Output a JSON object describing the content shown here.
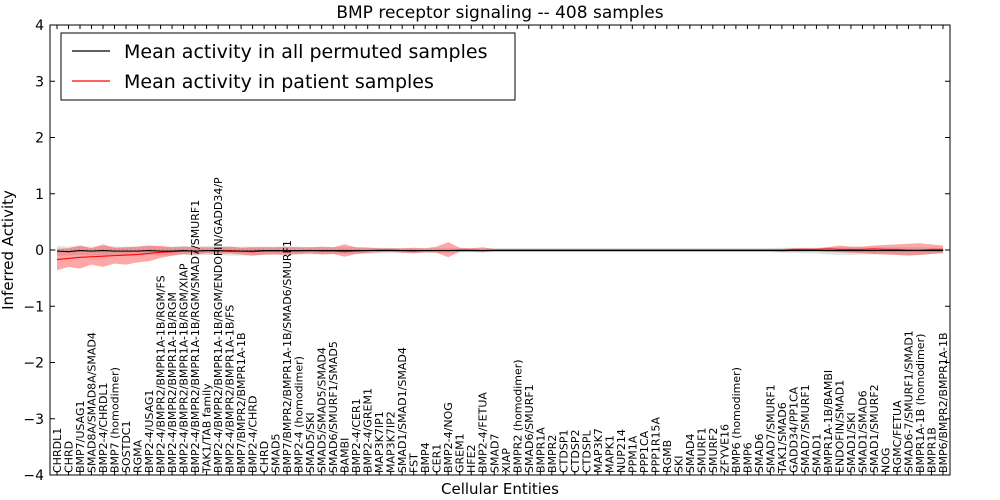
{
  "chart_data": {
    "type": "line",
    "title": "BMP receptor signaling -- 408 samples",
    "xlabel": "Cellular Entities",
    "ylabel": "Inferred Activity",
    "ylim": [
      -4,
      4
    ],
    "yticks": [
      -4,
      -3,
      -2,
      -1,
      0,
      1,
      2,
      3,
      4
    ],
    "legend": {
      "position": "top-left",
      "entries": [
        {
          "label": "Mean activity in all permuted samples",
          "color": "#000000"
        },
        {
          "label": "Mean activity in patient samples",
          "color": "#ff0000"
        }
      ]
    },
    "categories": [
      "CHRDL1",
      "CHRD",
      "BMP7/USAG1",
      "SMAD8A/SMAD8A/SMAD4",
      "BMP2-4/CHRDL1",
      "BMP7 (homodimer)",
      "SOSTDC1",
      "RGMA",
      "BMP2-4/USAG1",
      "BMP2-4/BMPR2/BMPR1A-1B/RGM/FS",
      "BMP2-4/BMPR2/BMPR1A-1B/RGM",
      "BMP2-4/BMPR2/BMPR1A-1B/RGM/XIAP",
      "BMP2-4/BMPR2/BMPR1A-1B/RGM/SMAD7/SMURF1",
      "TAK1/TAB family",
      "BMP2-4/BMPR2/BMPR1A-1B/RGM/ENDOFIN/GADD34/P",
      "BMP2-4/BMPR2/BMPR1A-1B/FS",
      "BMP7/BMPR2/BMPR1A-1B",
      "BMP2-4/CHRD",
      "CHRD",
      "SMAD5",
      "BMP7/BMPR2/BMPR1A-1B/SMAD6/SMURF1",
      "BMP2-4 (homodimer)",
      "SMAD5/SKI",
      "SMAD5/SMAD5/SMAD4",
      "SMAD6/SMURF1/SMAD5",
      "BAMBI",
      "BMP2-4/CER1",
      "BMP2-4/GREM1",
      "MAP3K7IP1",
      "MAP3K7IP2",
      "SMAD1/SMAD1/SMAD4",
      "FST",
      "BMP4",
      "CER1",
      "BMP2-4/NOG",
      "GREM1",
      "HFE2",
      "BMP2-4/FETUA",
      "SMAD7",
      "XIAP",
      "BMPR2 (homodimer)",
      "SMAD6/SMURF1",
      "BMPR1A",
      "BMPR2",
      "CTDSP1",
      "CTDSP2",
      "CTDSPL",
      "MAP3K7",
      "MAPK1",
      "NUP214",
      "PPM1A",
      "PPP1CA",
      "PPP1R15A",
      "RGMB",
      "SKI",
      "SMAD4",
      "SMURF1",
      "SMURF2",
      "ZFYVE16",
      "BMP6 (homodimer)",
      "BMP6",
      "SMAD6",
      "SMAD7/SMURF1",
      "TAK1/SMAD6",
      "GADD34/PP1CA",
      "SMAD7/SMURF1",
      "SMAD1",
      "BMPR1A-1B/BAMBI",
      "ENDOFIN/SMAD1",
      "SMAD1/SKI",
      "SMAD1/SMAD6",
      "SMAD1/SMURF2",
      "NOG",
      "RGMC/FETUA",
      "SMAD6-7/SMURF1/SMAD1",
      "BMPR1A-1B (homodimer)",
      "BMPR1B",
      "BMP6/BMPR2/BMPR1A-1B"
    ],
    "series": [
      {
        "name": "Mean activity in all permuted samples",
        "color": "#000000",
        "values": [
          -0.02,
          -0.03,
          -0.01,
          -0.02,
          -0.01,
          -0.02,
          -0.02,
          -0.02,
          -0.01,
          -0.02,
          -0.02,
          -0.01,
          -0.02,
          -0.01,
          -0.01,
          -0.02,
          -0.02,
          -0.02,
          -0.01,
          -0.01,
          -0.01,
          -0.01,
          -0.01,
          -0.01,
          -0.01,
          -0.01,
          -0.01,
          -0.01,
          -0.01,
          -0.01,
          -0.01,
          -0.01,
          -0.01,
          -0.01,
          -0.01,
          -0.01,
          -0.01,
          -0.01,
          -0.01,
          -0.01,
          -0.01,
          -0.01,
          -0.01,
          -0.01,
          -0.01,
          -0.01,
          -0.01,
          -0.01,
          -0.01,
          -0.01,
          -0.01,
          -0.01,
          -0.01,
          -0.01,
          -0.01,
          -0.01,
          -0.01,
          -0.01,
          -0.01,
          -0.01,
          -0.01,
          -0.01,
          -0.01,
          -0.01,
          -0.01,
          -0.01,
          -0.01,
          -0.01,
          -0.01,
          -0.01,
          -0.01,
          -0.01,
          -0.01,
          -0.01,
          -0.01,
          -0.01,
          -0.01,
          -0.01
        ],
        "band_low": [
          -0.1,
          -0.1,
          -0.09,
          -0.1,
          -0.09,
          -0.1,
          -0.1,
          -0.1,
          -0.09,
          -0.1,
          -0.1,
          -0.09,
          -0.1,
          -0.09,
          -0.09,
          -0.1,
          -0.1,
          -0.1,
          -0.09,
          -0.08,
          -0.08,
          -0.08,
          -0.08,
          -0.07,
          -0.07,
          -0.07,
          -0.07,
          -0.07,
          -0.06,
          -0.06,
          -0.05,
          -0.05,
          -0.05,
          -0.05,
          -0.05,
          -0.04,
          -0.04,
          -0.04,
          -0.04,
          -0.04,
          -0.04,
          -0.04,
          -0.04,
          -0.04,
          -0.04,
          -0.04,
          -0.04,
          -0.04,
          -0.04,
          -0.04,
          -0.04,
          -0.04,
          -0.04,
          -0.04,
          -0.04,
          -0.04,
          -0.04,
          -0.04,
          -0.04,
          -0.04,
          -0.04,
          -0.04,
          -0.04,
          -0.05,
          -0.05,
          -0.06,
          -0.06,
          -0.08,
          -0.09,
          -0.09,
          -0.08,
          -0.08,
          -0.07,
          -0.08,
          -0.09,
          -0.09,
          -0.07,
          -0.07
        ],
        "band_high": [
          0.07,
          0.06,
          0.07,
          0.06,
          0.07,
          0.06,
          0.06,
          0.06,
          0.07,
          0.06,
          0.06,
          0.07,
          0.06,
          0.07,
          0.07,
          0.06,
          0.06,
          0.06,
          0.06,
          0.06,
          0.06,
          0.06,
          0.05,
          0.05,
          0.05,
          0.05,
          0.05,
          0.05,
          0.04,
          0.04,
          0.03,
          0.03,
          0.03,
          0.03,
          0.03,
          0.03,
          0.03,
          0.03,
          0.03,
          0.03,
          0.03,
          0.03,
          0.03,
          0.03,
          0.03,
          0.03,
          0.03,
          0.03,
          0.03,
          0.03,
          0.03,
          0.03,
          0.03,
          0.03,
          0.03,
          0.03,
          0.03,
          0.03,
          0.03,
          0.03,
          0.03,
          0.03,
          0.03,
          0.04,
          0.04,
          0.04,
          0.04,
          0.05,
          0.05,
          0.05,
          0.05,
          0.05,
          0.05,
          0.05,
          0.05,
          0.05,
          0.04,
          0.04
        ]
      },
      {
        "name": "Mean activity in patient samples",
        "color": "#ff0000",
        "values": [
          -0.17,
          -0.15,
          -0.13,
          -0.12,
          -0.11,
          -0.1,
          -0.09,
          -0.08,
          -0.06,
          -0.04,
          -0.03,
          -0.02,
          -0.02,
          -0.01,
          -0.02,
          -0.01,
          -0.02,
          -0.03,
          -0.02,
          -0.02,
          -0.02,
          -0.02,
          -0.01,
          -0.02,
          -0.02,
          -0.03,
          -0.02,
          -0.01,
          0.0,
          0.0,
          -0.01,
          -0.02,
          -0.01,
          -0.01,
          -0.01,
          0.0,
          0.0,
          -0.01,
          0.0,
          0.0,
          0.0,
          0.0,
          0.0,
          0.0,
          0.0,
          0.0,
          0.0,
          0.0,
          0.0,
          0.0,
          0.0,
          0.0,
          0.0,
          0.0,
          0.0,
          0.0,
          0.0,
          0.0,
          0.0,
          0.0,
          0.0,
          0.0,
          0.0,
          0.0,
          0.01,
          0.01,
          0.01,
          0.02,
          0.01,
          0.01,
          0.01,
          0.02,
          0.01,
          0.01,
          0.0,
          0.0,
          0.01,
          0.01
        ],
        "band_low": [
          -0.36,
          -0.3,
          -0.33,
          -0.26,
          -0.3,
          -0.24,
          -0.26,
          -0.22,
          -0.2,
          -0.14,
          -0.1,
          -0.07,
          -0.08,
          -0.06,
          -0.07,
          -0.06,
          -0.08,
          -0.1,
          -0.08,
          -0.08,
          -0.09,
          -0.07,
          -0.06,
          -0.08,
          -0.07,
          -0.12,
          -0.07,
          -0.05,
          -0.04,
          -0.03,
          -0.05,
          -0.06,
          -0.04,
          -0.05,
          -0.13,
          -0.03,
          -0.03,
          -0.04,
          -0.02,
          -0.02,
          -0.02,
          -0.02,
          -0.02,
          -0.02,
          -0.02,
          -0.02,
          -0.02,
          -0.02,
          -0.02,
          -0.02,
          -0.02,
          -0.02,
          -0.02,
          -0.02,
          -0.02,
          -0.02,
          -0.02,
          -0.02,
          -0.02,
          -0.02,
          -0.02,
          -0.02,
          -0.02,
          -0.03,
          -0.02,
          -0.02,
          -0.02,
          -0.03,
          -0.04,
          -0.05,
          -0.06,
          -0.07,
          -0.08,
          -0.09,
          -0.1,
          -0.09,
          -0.07,
          -0.05
        ],
        "band_high": [
          0.02,
          0.03,
          0.08,
          0.03,
          0.1,
          0.04,
          0.05,
          0.06,
          0.08,
          0.07,
          0.05,
          0.06,
          0.05,
          0.05,
          0.05,
          0.06,
          0.04,
          0.05,
          0.05,
          0.05,
          0.06,
          0.05,
          0.05,
          0.06,
          0.05,
          0.1,
          0.05,
          0.04,
          0.03,
          0.03,
          0.03,
          0.04,
          0.03,
          0.06,
          0.14,
          0.04,
          0.03,
          0.05,
          0.02,
          0.02,
          0.02,
          0.02,
          0.02,
          0.02,
          0.02,
          0.02,
          0.02,
          0.02,
          0.02,
          0.02,
          0.02,
          0.02,
          0.02,
          0.02,
          0.02,
          0.02,
          0.02,
          0.02,
          0.02,
          0.02,
          0.02,
          0.02,
          0.02,
          0.02,
          0.03,
          0.03,
          0.03,
          0.05,
          0.08,
          0.06,
          0.06,
          0.08,
          0.09,
          0.1,
          0.11,
          0.12,
          0.1,
          0.08
        ]
      }
    ]
  }
}
